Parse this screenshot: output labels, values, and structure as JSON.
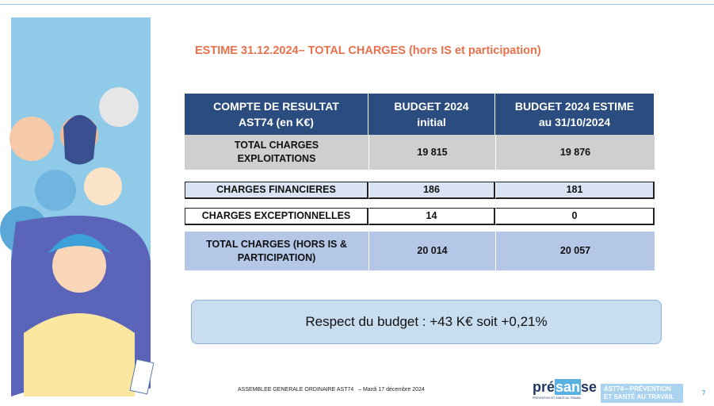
{
  "title": "ESTIME 31.12.2024– TOTAL CHARGES (hors IS et participation)",
  "table": {
    "header": [
      [
        "COMPTE DE RESULTAT",
        "AST74 (en K€)"
      ],
      [
        "BUDGET 2024",
        "initial"
      ],
      [
        "BUDGET 2024 ESTIME",
        "au 31/10/2024"
      ]
    ],
    "rows": [
      [
        [
          "TOTAL CHARGES",
          "EXPLOITATIONS"
        ],
        [
          "19 815"
        ],
        [
          "19 876"
        ]
      ],
      [
        [
          "CHARGES FINANCIERES"
        ],
        [
          "186"
        ],
        [
          "181"
        ]
      ],
      [
        [
          "CHARGES EXCEPTIONNELLES"
        ],
        [
          "14"
        ],
        [
          "0"
        ]
      ],
      [
        [
          "TOTAL CHARGES (HORS IS &",
          "PARTICIPATION)"
        ],
        [
          "20 014"
        ],
        [
          "20 057"
        ]
      ]
    ]
  },
  "callout": "Respect du budget : +43 K€ soit +0,21%",
  "footer": {
    "text": "ASSEMBLEE GENERALE ORDINAIRE AST74   – Mardi 17 décembre 2024",
    "presanse": [
      "pré",
      "san",
      "se"
    ],
    "presanse_sub": "PRÉVENTION ET SANTÉ AU TRAVAIL",
    "ast74": [
      "AST74—PRÉVENTION",
      "ET SANTÉ AU TRAVAIL"
    ],
    "page": "7"
  }
}
